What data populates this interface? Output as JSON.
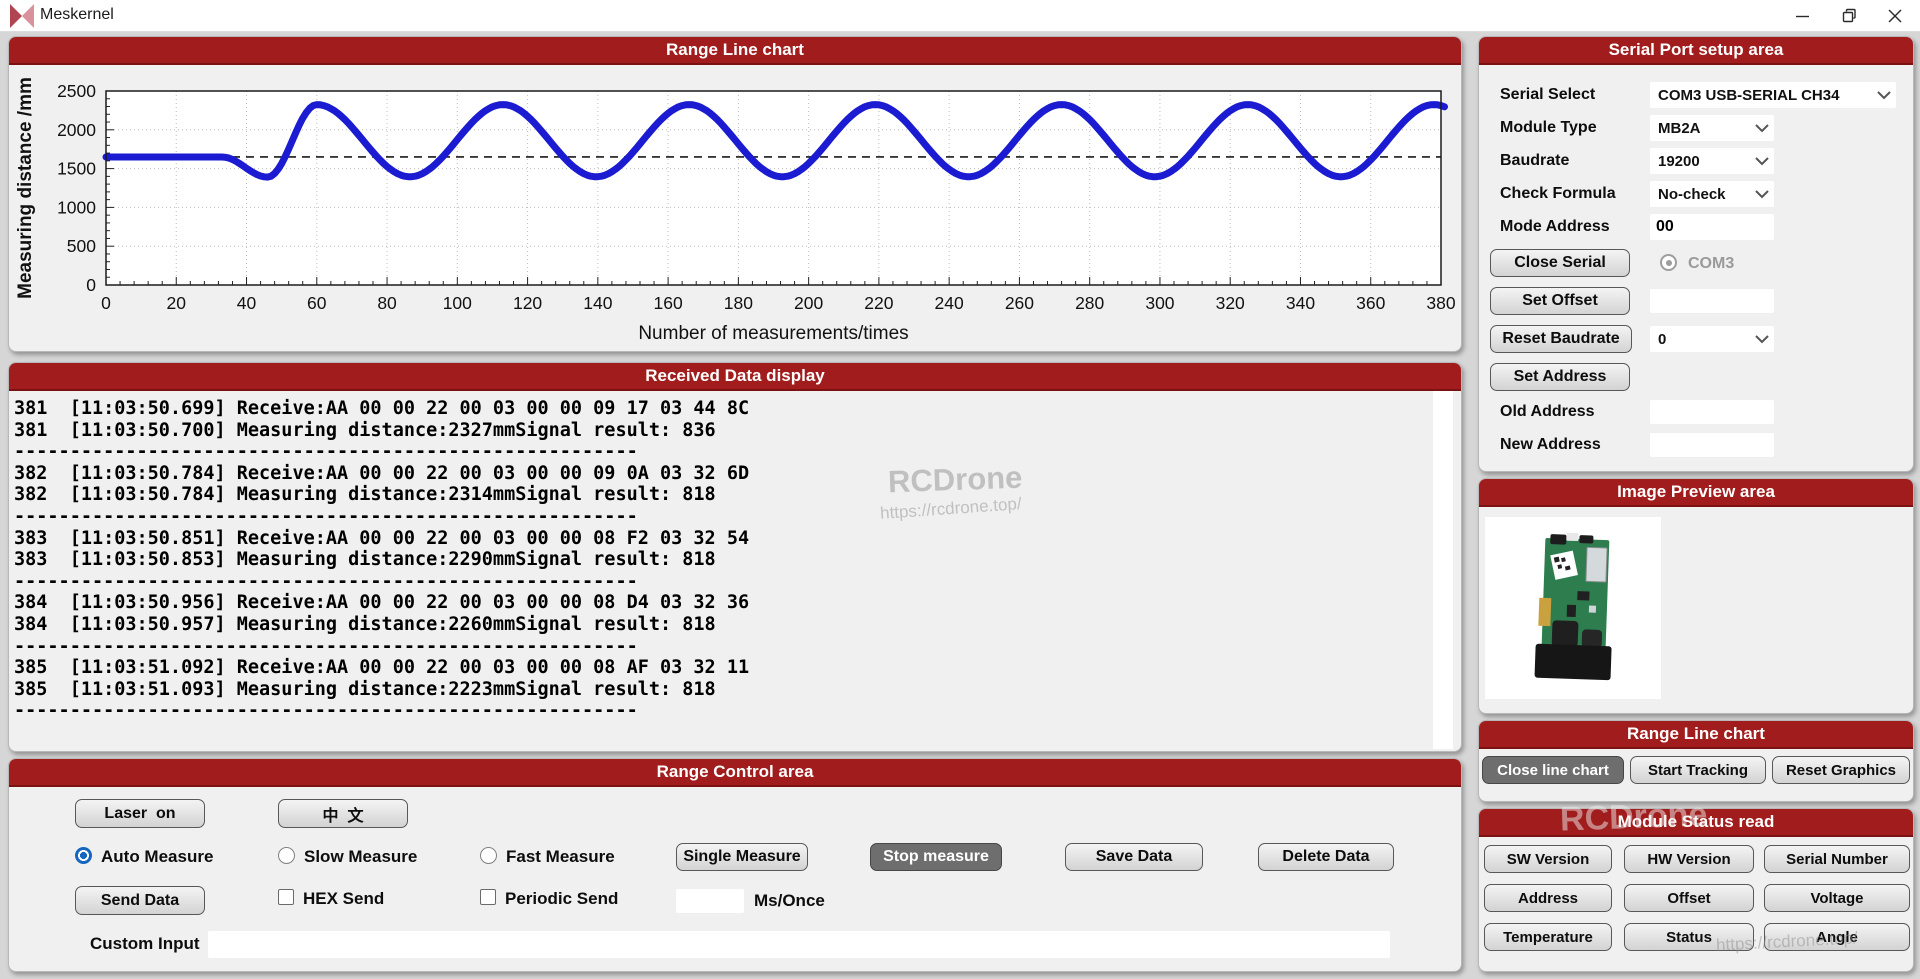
{
  "colors": {
    "accent_red": "#a11c1c",
    "line_blue": "#1b1bd2",
    "radio_blue": "#1566c0",
    "dark_button": "#6e6e6e"
  },
  "window": {
    "title": "Meskernel"
  },
  "chart_data": {
    "type": "line",
    "title": "Range Line chart",
    "xlabel": "Number of measurements/times",
    "ylabel": "Measuring distance /mm",
    "xlim": [
      0,
      380
    ],
    "ylim": [
      0,
      2500
    ],
    "x_tick_step": 20,
    "y_tick_step": 500,
    "x_minor_step": 4,
    "y_minor_step": 100,
    "grid": "dotted",
    "legend": "none",
    "reference_line_y": 1650,
    "line_color": "#1b1bd2",
    "series": [
      {
        "name": "Measuring distance",
        "model": {
          "flat_value": 1650,
          "flat_until_x": 33,
          "dip_min": 1390,
          "dip_min_x": 46,
          "first_peak_x": 60,
          "sine_center": 1860,
          "sine_amplitude": 465,
          "period": 53,
          "x_end": 381
        },
        "key_points": [
          [
            0,
            1650
          ],
          [
            33,
            1650
          ],
          [
            46,
            1390
          ],
          [
            60,
            2325
          ],
          [
            86,
            1395
          ],
          [
            113,
            2325
          ],
          [
            140,
            1395
          ],
          [
            166,
            2325
          ],
          [
            192,
            1395
          ],
          [
            219,
            2325
          ],
          [
            246,
            1395
          ],
          [
            272,
            2325
          ],
          [
            298,
            1395
          ],
          [
            325,
            2325
          ],
          [
            352,
            1395
          ],
          [
            378,
            2325
          ],
          [
            381,
            2300
          ]
        ]
      }
    ]
  },
  "received": {
    "title": "Received Data display",
    "lines": [
      "381  [11:03:50.699] Receive:AA 00 00 22 00 03 00 00 09 17 03 44 8C",
      "381  [11:03:50.700] Measuring distance:2327mmSignal result: 836",
      "--------------------------------------------------------",
      "382  [11:03:50.784] Receive:AA 00 00 22 00 03 00 00 09 0A 03 32 6D",
      "382  [11:03:50.784] Measuring distance:2314mmSignal result: 818",
      "--------------------------------------------------------",
      "383  [11:03:50.851] Receive:AA 00 00 22 00 03 00 00 08 F2 03 32 54",
      "383  [11:03:50.853] Measuring distance:2290mmSignal result: 818",
      "--------------------------------------------------------",
      "384  [11:03:50.956] Receive:AA 00 00 22 00 03 00 00 08 D4 03 32 36",
      "384  [11:03:50.957] Measuring distance:2260mmSignal result: 818",
      "--------------------------------------------------------",
      "385  [11:03:51.092] Receive:AA 00 00 22 00 03 00 00 08 AF 03 32 11",
      "385  [11:03:51.093] Measuring distance:2223mmSignal result: 818",
      "--------------------------------------------------------"
    ]
  },
  "control": {
    "title": "Range Control area",
    "laser_button": "Laser  on",
    "language_button": "中  文",
    "radios": [
      {
        "label": "Auto Measure",
        "selected": true
      },
      {
        "label": "Slow Measure",
        "selected": false
      },
      {
        "label": "Fast Measure",
        "selected": false
      }
    ],
    "single_measure": "Single Measure",
    "stop_measure": "Stop measure",
    "save_data": "Save Data",
    "delete_data": "Delete Data",
    "send_data": "Send Data",
    "hex_send": "HEX Send",
    "periodic_send": "Periodic Send",
    "ms_once_label": "Ms/Once",
    "ms_once_value": "",
    "custom_input_label": "Custom Input",
    "custom_input_value": ""
  },
  "serial": {
    "title": "Serial Port setup area",
    "serial_select_label": "Serial Select",
    "serial_select_value": "COM3 USB-SERIAL CH34",
    "module_type_label": "Module Type",
    "module_type_value": "MB2A",
    "baudrate_label": "Baudrate",
    "baudrate_value": "19200",
    "check_formula_label": "Check Formula",
    "check_formula_value": "No-check",
    "mode_address_label": "Mode Address",
    "mode_address_value": "00",
    "close_serial": "Close Serial",
    "com_radio": "COM3",
    "set_offset": "Set Offset",
    "offset_value": "",
    "reset_baudrate": "Reset Baudrate",
    "reset_baudrate_value": "0",
    "set_address": "Set Address",
    "old_address_label": "Old Address",
    "old_address_value": "",
    "new_address_label": "New Address",
    "new_address_value": ""
  },
  "preview": {
    "title": "Image Preview area",
    "image_name": "laser-rangefinder-module-photo"
  },
  "chart_controls": {
    "title": "Range Line chart",
    "close_line_chart": "Close line chart",
    "start_tracking": "Start Tracking",
    "reset_graphics": "Reset Graphics"
  },
  "status": {
    "title": "Module Status read",
    "buttons": [
      "SW Version",
      "HW Version",
      "Serial Number",
      "Address",
      "Offset",
      "Voltage",
      "Temperature",
      "Status",
      "Angle"
    ]
  },
  "watermarks": {
    "brand": "RCDrone",
    "url": "https://rcdrone.top/"
  }
}
